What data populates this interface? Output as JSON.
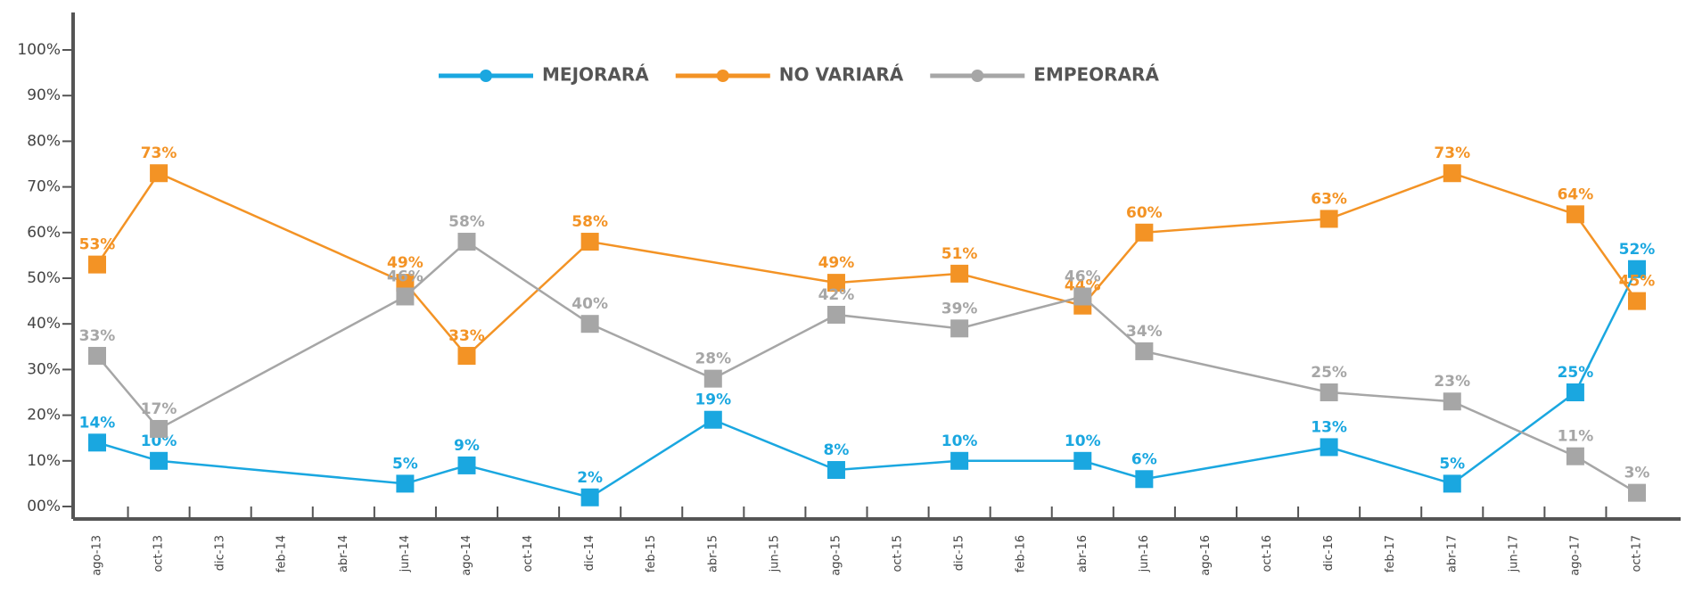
{
  "chart_data": {
    "type": "line",
    "categories": [
      "ago-13",
      "oct-13",
      "dic-13",
      "feb-14",
      "abr-14",
      "jun-14",
      "ago-14",
      "oct-14",
      "dic-14",
      "feb-15",
      "abr-15",
      "jun-15",
      "ago-15",
      "oct-15",
      "dic-15",
      "feb-16",
      "abr-16",
      "jun-16",
      "ago-16",
      "oct-16",
      "dic-16",
      "feb-17",
      "abr-17",
      "jun-17",
      "ago-17",
      "oct-17"
    ],
    "connect_nulls": true,
    "legend": "top",
    "series": [
      {
        "name": "MEJORARÁ",
        "color": "#1aa7e0",
        "values": [
          14,
          10,
          null,
          null,
          null,
          5,
          9,
          null,
          2,
          null,
          19,
          null,
          8,
          null,
          10,
          null,
          10,
          6,
          null,
          null,
          13,
          null,
          5,
          null,
          25,
          52
        ],
        "value_labels": [
          "14%",
          "10%",
          null,
          null,
          null,
          "5%",
          "9%",
          null,
          "2%",
          null,
          "19%",
          null,
          "8%",
          null,
          "10%",
          null,
          "10%",
          "6%",
          null,
          null,
          "13%",
          null,
          "5%",
          null,
          "25%",
          "52%"
        ]
      },
      {
        "name": "NO VARIARÁ",
        "color": "#f39325",
        "values": [
          53,
          73,
          null,
          null,
          null,
          49,
          33,
          null,
          58,
          null,
          null,
          null,
          49,
          null,
          51,
          null,
          44,
          60,
          null,
          null,
          63,
          null,
          73,
          null,
          64,
          45
        ],
        "value_labels": [
          "53%",
          "73%",
          null,
          null,
          null,
          "49%",
          "33%",
          null,
          "58%",
          null,
          null,
          null,
          "49%",
          null,
          "51%",
          null,
          "44%",
          "60%",
          null,
          null,
          "63%",
          null,
          "73%",
          null,
          "64%",
          "45%"
        ]
      },
      {
        "name": "EMPEORARÁ",
        "color": "#a6a6a6",
        "values": [
          33,
          17,
          null,
          null,
          null,
          46,
          58,
          null,
          40,
          null,
          28,
          null,
          42,
          null,
          39,
          null,
          46,
          34,
          null,
          null,
          25,
          null,
          23,
          null,
          11,
          3
        ],
        "value_labels": [
          "33%",
          "17%",
          null,
          null,
          null,
          "46%",
          "58%",
          null,
          "40%",
          null,
          "28%",
          null,
          "42%",
          null,
          "39%",
          null,
          "46%",
          "34%",
          null,
          null,
          "25%",
          null,
          "23%",
          null,
          "11%",
          "3%"
        ]
      }
    ],
    "ylim": [
      0,
      100
    ],
    "yticks": [
      {
        "value": 0,
        "label": "00%"
      },
      {
        "value": 10,
        "label": "10%"
      },
      {
        "value": 20,
        "label": "20%"
      },
      {
        "value": 30,
        "label": "30%"
      },
      {
        "value": 40,
        "label": "40%"
      },
      {
        "value": 50,
        "label": "50%"
      },
      {
        "value": 60,
        "label": "60%"
      },
      {
        "value": 70,
        "label": "70%"
      },
      {
        "value": 80,
        "label": "80%"
      },
      {
        "value": 90,
        "label": "90%"
      },
      {
        "value": 100,
        "label": "100%"
      }
    ]
  }
}
